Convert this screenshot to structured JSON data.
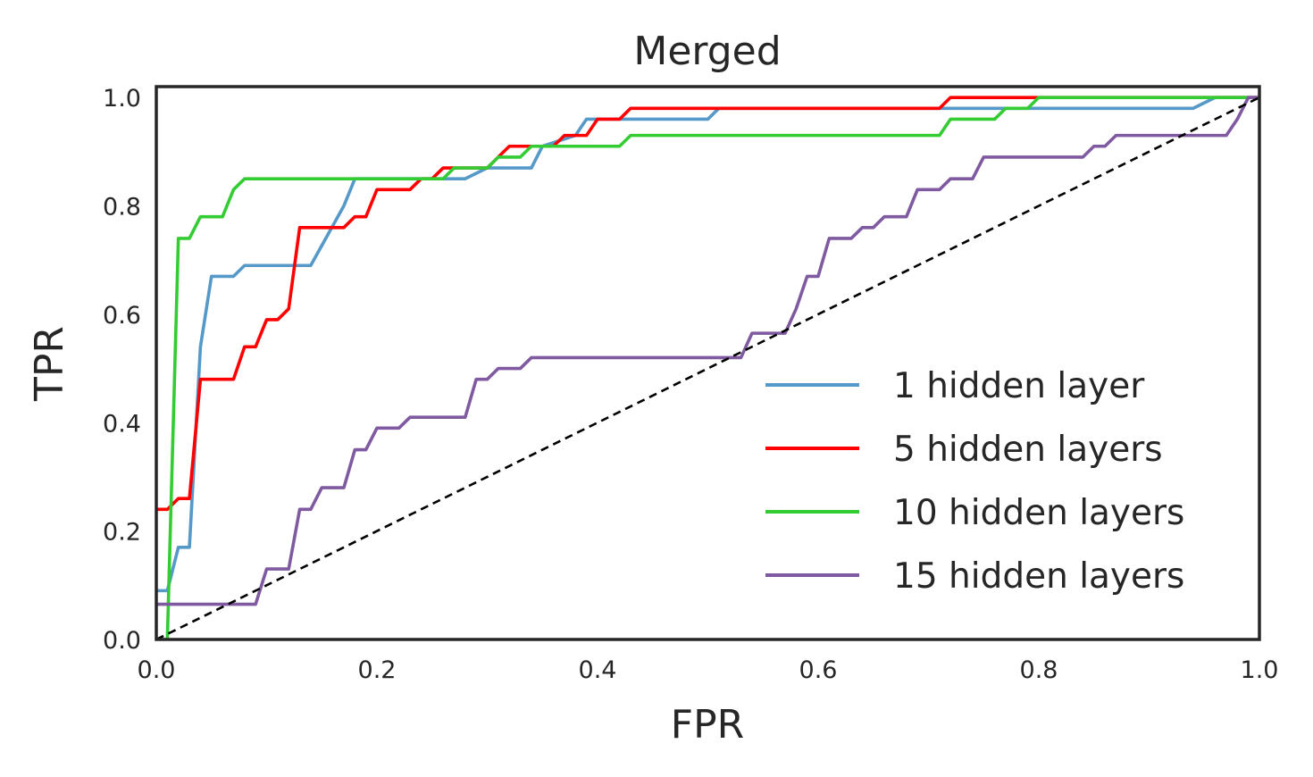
{
  "chart_data": {
    "type": "line",
    "title": "Merged",
    "xlabel": "FPR",
    "ylabel": "TPR",
    "xlim": [
      0.0,
      1.0
    ],
    "ylim": [
      0.0,
      1.02
    ],
    "x_ticks": [
      "0.0",
      "0.2",
      "0.4",
      "0.6",
      "0.8",
      "1.0"
    ],
    "y_ticks": [
      "0.0",
      "0.2",
      "0.4",
      "0.6",
      "0.8",
      "1.0"
    ],
    "x_tick_values": [
      0.0,
      0.2,
      0.4,
      0.6,
      0.8,
      1.0
    ],
    "y_tick_values": [
      0.0,
      0.2,
      0.4,
      0.6,
      0.8,
      1.0
    ],
    "grid": false,
    "legend_position": "lower-right",
    "series": [
      {
        "name": "1 hidden layer",
        "color": "#5599c8",
        "points": [
          [
            0.0,
            0.09
          ],
          [
            0.01,
            0.09
          ],
          [
            0.02,
            0.17
          ],
          [
            0.03,
            0.17
          ],
          [
            0.04,
            0.54
          ],
          [
            0.05,
            0.67
          ],
          [
            0.07,
            0.67
          ],
          [
            0.08,
            0.69
          ],
          [
            0.14,
            0.69
          ],
          [
            0.17,
            0.8
          ],
          [
            0.18,
            0.85
          ],
          [
            0.28,
            0.85
          ],
          [
            0.3,
            0.87
          ],
          [
            0.34,
            0.87
          ],
          [
            0.35,
            0.91
          ],
          [
            0.38,
            0.93
          ],
          [
            0.39,
            0.96
          ],
          [
            0.5,
            0.96
          ],
          [
            0.51,
            0.98
          ],
          [
            0.94,
            0.98
          ],
          [
            0.96,
            1.0
          ],
          [
            1.0,
            1.0
          ]
        ]
      },
      {
        "name": "5 hidden layers",
        "color": "#ff0000",
        "points": [
          [
            0.0,
            0.24
          ],
          [
            0.01,
            0.24
          ],
          [
            0.02,
            0.26
          ],
          [
            0.03,
            0.26
          ],
          [
            0.04,
            0.48
          ],
          [
            0.07,
            0.48
          ],
          [
            0.08,
            0.54
          ],
          [
            0.09,
            0.54
          ],
          [
            0.1,
            0.59
          ],
          [
            0.11,
            0.59
          ],
          [
            0.12,
            0.61
          ],
          [
            0.13,
            0.76
          ],
          [
            0.17,
            0.76
          ],
          [
            0.18,
            0.78
          ],
          [
            0.19,
            0.78
          ],
          [
            0.2,
            0.83
          ],
          [
            0.23,
            0.83
          ],
          [
            0.24,
            0.85
          ],
          [
            0.25,
            0.85
          ],
          [
            0.26,
            0.87
          ],
          [
            0.3,
            0.87
          ],
          [
            0.31,
            0.89
          ],
          [
            0.32,
            0.91
          ],
          [
            0.36,
            0.91
          ],
          [
            0.37,
            0.93
          ],
          [
            0.39,
            0.93
          ],
          [
            0.4,
            0.96
          ],
          [
            0.42,
            0.96
          ],
          [
            0.43,
            0.98
          ],
          [
            0.71,
            0.98
          ],
          [
            0.72,
            1.0
          ],
          [
            1.0,
            1.0
          ]
        ]
      },
      {
        "name": "10 hidden layers",
        "color": "#33cc33",
        "points": [
          [
            0.0,
            0.0
          ],
          [
            0.01,
            0.0
          ],
          [
            0.02,
            0.74
          ],
          [
            0.03,
            0.74
          ],
          [
            0.04,
            0.78
          ],
          [
            0.06,
            0.78
          ],
          [
            0.07,
            0.83
          ],
          [
            0.08,
            0.85
          ],
          [
            0.26,
            0.85
          ],
          [
            0.27,
            0.87
          ],
          [
            0.3,
            0.87
          ],
          [
            0.31,
            0.89
          ],
          [
            0.33,
            0.89
          ],
          [
            0.34,
            0.91
          ],
          [
            0.42,
            0.91
          ],
          [
            0.43,
            0.93
          ],
          [
            0.71,
            0.93
          ],
          [
            0.72,
            0.96
          ],
          [
            0.76,
            0.96
          ],
          [
            0.77,
            0.98
          ],
          [
            0.79,
            0.98
          ],
          [
            0.8,
            1.0
          ],
          [
            1.0,
            1.0
          ]
        ]
      },
      {
        "name": "15 hidden layers",
        "color": "#7f5aa0",
        "points": [
          [
            0.0,
            0.065
          ],
          [
            0.09,
            0.065
          ],
          [
            0.1,
            0.13
          ],
          [
            0.12,
            0.13
          ],
          [
            0.13,
            0.24
          ],
          [
            0.14,
            0.24
          ],
          [
            0.15,
            0.28
          ],
          [
            0.17,
            0.28
          ],
          [
            0.18,
            0.35
          ],
          [
            0.19,
            0.35
          ],
          [
            0.2,
            0.39
          ],
          [
            0.22,
            0.39
          ],
          [
            0.23,
            0.41
          ],
          [
            0.28,
            0.41
          ],
          [
            0.29,
            0.48
          ],
          [
            0.3,
            0.48
          ],
          [
            0.31,
            0.5
          ],
          [
            0.33,
            0.5
          ],
          [
            0.34,
            0.52
          ],
          [
            0.53,
            0.52
          ],
          [
            0.54,
            0.565
          ],
          [
            0.57,
            0.565
          ],
          [
            0.58,
            0.61
          ],
          [
            0.59,
            0.67
          ],
          [
            0.6,
            0.67
          ],
          [
            0.61,
            0.74
          ],
          [
            0.63,
            0.74
          ],
          [
            0.64,
            0.76
          ],
          [
            0.65,
            0.76
          ],
          [
            0.66,
            0.78
          ],
          [
            0.68,
            0.78
          ],
          [
            0.69,
            0.83
          ],
          [
            0.71,
            0.83
          ],
          [
            0.72,
            0.85
          ],
          [
            0.74,
            0.85
          ],
          [
            0.75,
            0.89
          ],
          [
            0.84,
            0.89
          ],
          [
            0.85,
            0.91
          ],
          [
            0.86,
            0.91
          ],
          [
            0.87,
            0.93
          ],
          [
            0.97,
            0.93
          ],
          [
            0.98,
            0.96
          ],
          [
            0.99,
            1.0
          ],
          [
            1.0,
            1.0
          ]
        ]
      }
    ],
    "reference_line": {
      "style": "dashed",
      "color": "#000000",
      "points": [
        [
          0.0,
          0.0
        ],
        [
          1.0,
          1.0
        ]
      ]
    }
  }
}
